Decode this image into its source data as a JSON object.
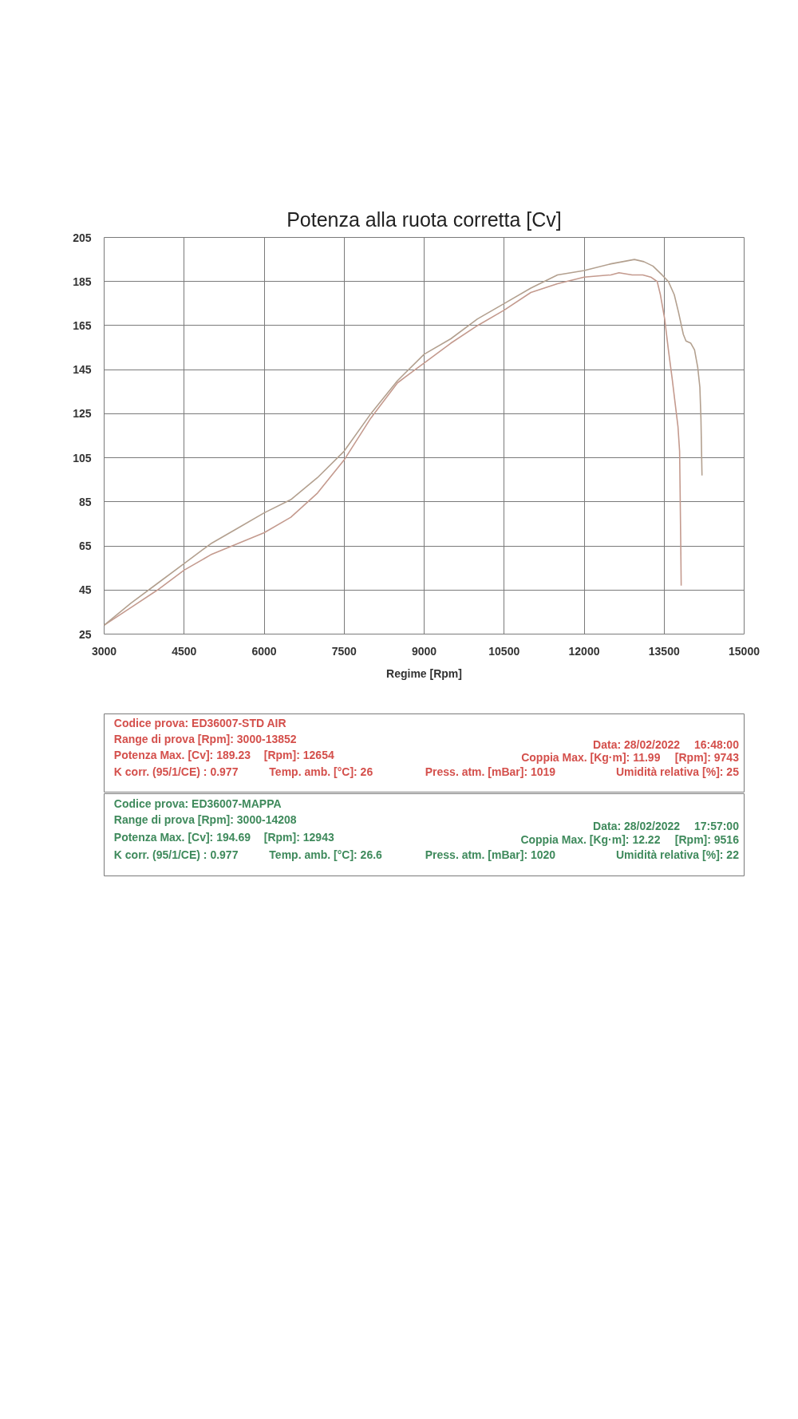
{
  "chart_data": {
    "type": "line",
    "title": "Potenza alla ruota corretta [Cv]",
    "xlabel": "Regime [Rpm]",
    "xlim": [
      3000,
      15000
    ],
    "xticks": [
      3000,
      4500,
      6000,
      7500,
      9000,
      10500,
      12000,
      13500,
      15000
    ],
    "ylim": [
      25,
      205
    ],
    "yticks": [
      25,
      45,
      65,
      85,
      105,
      125,
      145,
      165,
      185,
      205
    ],
    "grid": true,
    "line_style": "solid",
    "series": [
      {
        "color": "#c49a8e",
        "x": [
          3000,
          3500,
          4000,
          4500,
          5000,
          5500,
          6000,
          6500,
          7000,
          7500,
          8000,
          8500,
          9000,
          9500,
          10000,
          10500,
          11000,
          11500,
          12000,
          12500,
          12654,
          12900,
          13100,
          13250,
          13370,
          13430,
          13510,
          13580,
          13650,
          13720,
          13760,
          13790,
          13800,
          13810,
          13820
        ],
        "values": [
          29,
          37,
          45,
          54,
          61,
          66,
          71,
          78,
          89,
          104,
          123,
          139,
          148,
          157,
          165,
          172,
          180,
          184,
          187,
          188,
          189,
          188,
          188,
          187,
          185,
          179,
          168,
          154,
          141,
          127,
          119,
          108,
          89,
          69,
          47
        ]
      },
      {
        "color": "#b3a08f",
        "x": [
          3000,
          3500,
          4000,
          4500,
          5000,
          5500,
          6000,
          6500,
          7000,
          7500,
          8000,
          8500,
          9000,
          9500,
          10000,
          10500,
          11000,
          11500,
          12000,
          12500,
          12943,
          13120,
          13290,
          13460,
          13580,
          13690,
          13770,
          13860,
          13910,
          14000,
          14070,
          14130,
          14170,
          14190,
          14210
        ],
        "values": [
          29,
          39,
          48,
          57,
          66,
          73,
          80,
          86,
          96,
          108,
          125,
          140,
          152,
          159,
          168,
          175,
          182,
          188,
          190,
          193,
          195,
          194,
          192,
          188,
          185,
          179,
          171,
          161,
          158,
          157,
          154,
          146,
          137,
          123,
          97
        ]
      }
    ],
    "annotations": [
      "Codice prova: ED36007-STD AIR",
      "Range di prova [Rpm]: 3000-13852",
      "Potenza Max. [Cv]: 189.23",
      "[Rpm]: 12654",
      "K corr. (95/1/CE) : 0.977",
      "Temp. amb. [°C]: 26",
      "Data: 28/02/2022",
      "16:48:00",
      "Coppia Max. [Kg·m]: 11.99",
      "[Rpm]: 9743",
      "Press. atm. [mBar]: 1019",
      "Umidità relativa [%]: 25",
      "Codice prova: ED36007-MAPPA",
      "Range di prova [Rpm]: 3000-14208",
      "Potenza Max. [Cv]: 194.69",
      "[Rpm]: 12943",
      "K corr. (95/1/CE) : 0.977",
      "Temp. amb. [°C]: 26.6",
      "Data: 28/02/2022",
      "17:57:00",
      "Coppia Max. [Kg·m]: 12.22",
      "[Rpm]: 9516",
      "Press. atm. [mBar]: 1020",
      "Umidità relativa [%]: 22"
    ]
  }
}
